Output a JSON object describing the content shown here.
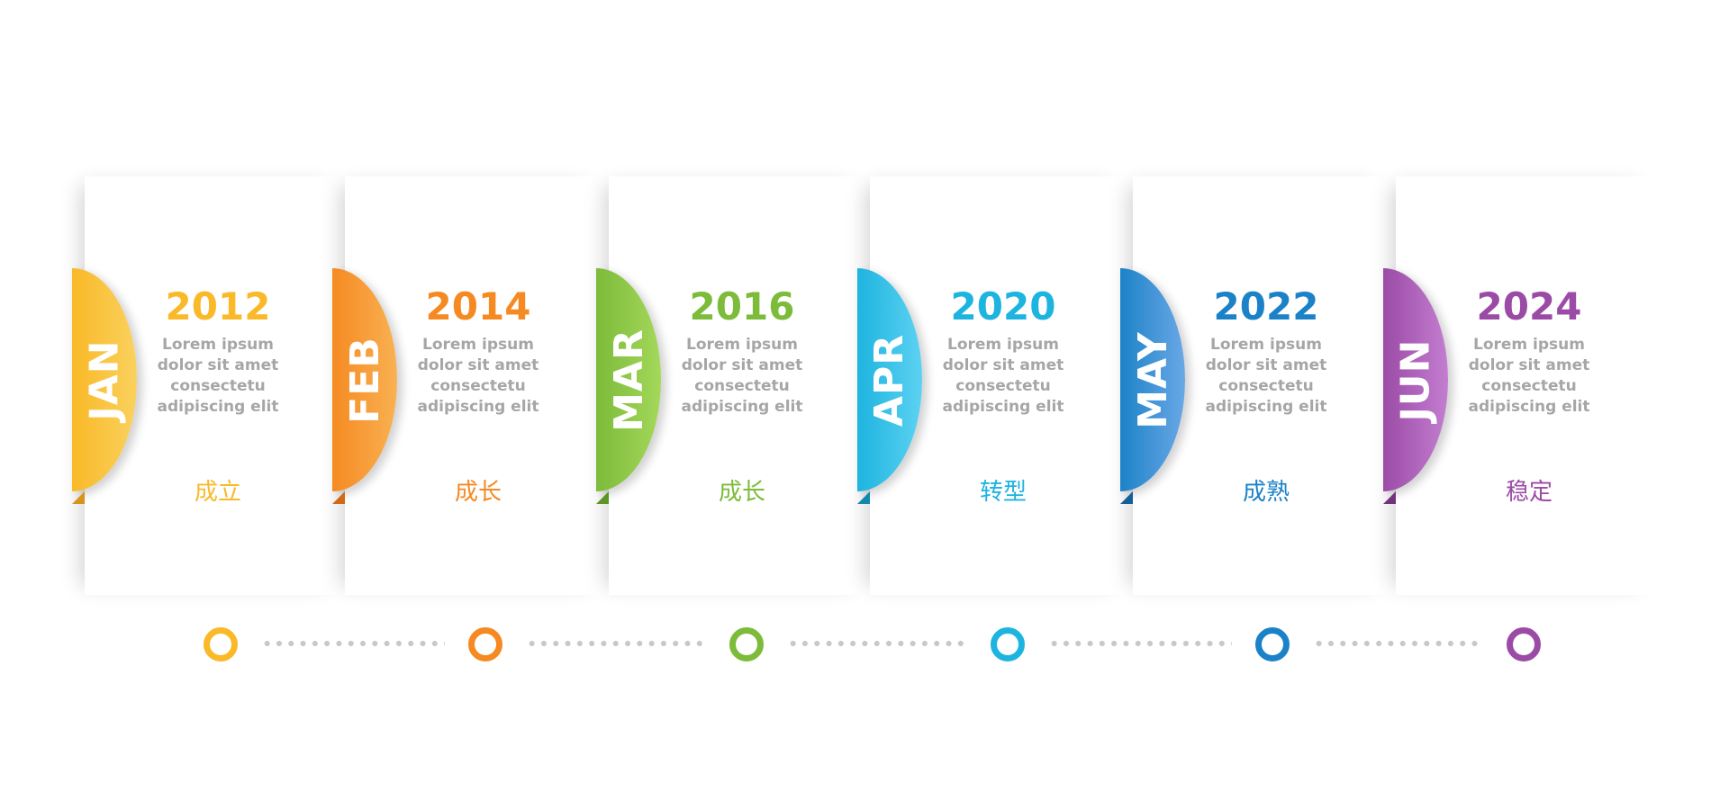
{
  "milestones": [
    {
      "month": "JAN",
      "year": "2012",
      "desc": [
        "Lorem ipsum",
        "dolor sit amet",
        "consectetu",
        "adipiscing elit"
      ],
      "label": "成立",
      "color": "#F9B928",
      "dark": "#D9921A",
      "light": "#FAD15E"
    },
    {
      "month": "FEB",
      "year": "2014",
      "desc": [
        "Lorem ipsum",
        "dolor sit amet",
        "consectetu",
        "adipiscing elit"
      ],
      "label": "成长",
      "color": "#F58A22",
      "dark": "#D2691A",
      "light": "#F9B152"
    },
    {
      "month": "MAR",
      "year": "2016",
      "desc": [
        "Lorem ipsum",
        "dolor sit amet",
        "consectetu",
        "adipiscing elit"
      ],
      "label": "成长",
      "color": "#7DBB3A",
      "dark": "#5C9426",
      "light": "#A4D85A"
    },
    {
      "month": "APR",
      "year": "2020",
      "desc": [
        "Lorem ipsum",
        "dolor sit amet",
        "consectetu",
        "adipiscing elit"
      ],
      "label": "转型",
      "color": "#1EB4E0",
      "dark": "#1089B0",
      "light": "#5CD2F2"
    },
    {
      "month": "MAY",
      "year": "2022",
      "desc": [
        "Lorem ipsum",
        "dolor sit amet",
        "consectetu",
        "adipiscing elit"
      ],
      "label": "成熟",
      "color": "#1C82C8",
      "dark": "#155F98",
      "light": "#6AA8E6"
    },
    {
      "month": "JUN",
      "year": "2024",
      "desc": [
        "Lorem ipsum",
        "dolor sit amet",
        "consectetu",
        "adipiscing elit"
      ],
      "label": "稳定",
      "color": "#9B4BA6",
      "dark": "#73337C",
      "light": "#C37ED0"
    }
  ]
}
